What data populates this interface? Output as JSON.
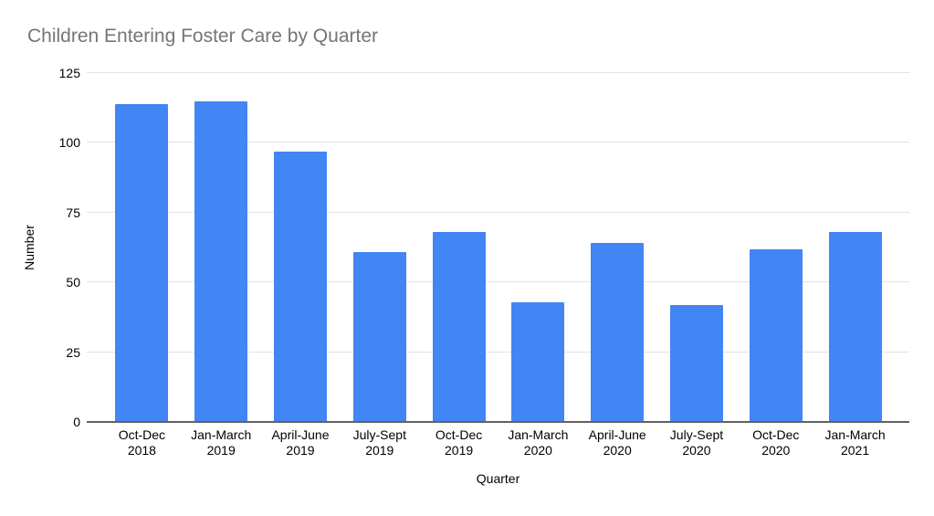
{
  "chart_data": {
    "type": "bar",
    "title": "Children Entering Foster Care by Quarter",
    "xlabel": "Quarter",
    "ylabel": "Number",
    "categories": [
      "Oct-Dec 2018",
      "Jan-March 2019",
      "April-June 2019",
      "July-Sept 2019",
      "Oct-Dec 2019",
      "Jan-March 2020",
      "April-June 2020",
      "July-Sept 2020",
      "Oct-Dec 2020",
      "Jan-March 2021"
    ],
    "values": [
      114,
      115,
      97,
      61,
      68,
      43,
      64,
      42,
      62,
      68
    ],
    "ylim": [
      0,
      125
    ],
    "y_ticks": [
      0,
      25,
      50,
      75,
      100,
      125
    ],
    "grid": true,
    "legend": "none"
  },
  "colors": {
    "bar": "#4285f4",
    "title_text": "#757575",
    "axis_text": "#000000",
    "gridline": "#e3e3e3",
    "baseline": "#616161",
    "background": "#ffffff"
  }
}
